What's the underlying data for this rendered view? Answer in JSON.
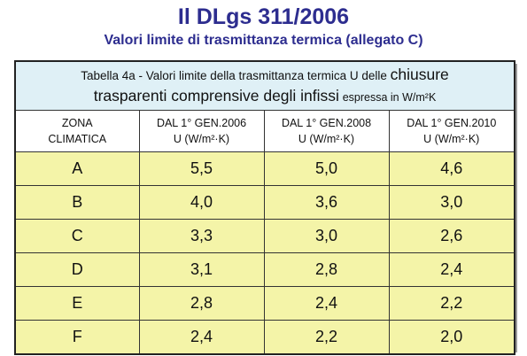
{
  "title": "Il DLgs 311/2006",
  "subtitle": "Valori limite di trasmittanza termica (allegato C)",
  "table": {
    "caption_part1": "Tabella 4a - Valori limite della trasmittanza termica U delle",
    "caption_part2": "chiusure",
    "caption_part3": "trasparenti comprensive degli infissi",
    "caption_part4": "espressa in W/m²K",
    "headers": [
      {
        "line1": "ZONA",
        "line2": "CLIMATICA"
      },
      {
        "line1": "DAL 1° GEN.2006",
        "line2": "U (W/m²·K)"
      },
      {
        "line1": "DAL 1° GEN.2008",
        "line2": "U (W/m²·K)"
      },
      {
        "line1": "DAL 1° GEN.2010",
        "line2": "U (W/m²·K)"
      }
    ],
    "rows": [
      {
        "zone": "A",
        "v2006": "5,5",
        "v2008": "5,0",
        "v2010": "4,6"
      },
      {
        "zone": "B",
        "v2006": "4,0",
        "v2008": "3,6",
        "v2010": "3,0"
      },
      {
        "zone": "C",
        "v2006": "3,3",
        "v2008": "3,0",
        "v2010": "2,6"
      },
      {
        "zone": "D",
        "v2006": "3,1",
        "v2008": "2,8",
        "v2010": "2,4"
      },
      {
        "zone": "E",
        "v2006": "2,8",
        "v2008": "2,4",
        "v2010": "2,2"
      },
      {
        "zone": "F",
        "v2006": "2,4",
        "v2008": "2,2",
        "v2010": "2,0"
      }
    ]
  },
  "colors": {
    "title": "#2d2d8f",
    "caption_bg": "#dff0f6",
    "data_bg": "#f4f4a8"
  }
}
